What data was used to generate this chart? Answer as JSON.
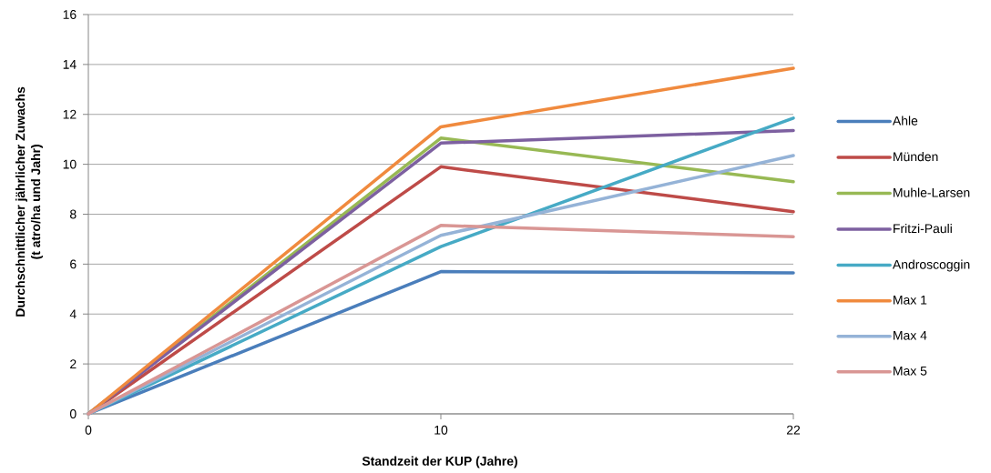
{
  "chart_data": {
    "type": "line",
    "xlabel": "Standzeit der KUP (Jahre)",
    "ylabel": "Durchschnittlicher jährlicher Zuwachs (t atro/ha und Jahr)",
    "categories": [
      "0",
      "10",
      "22"
    ],
    "ylim": [
      0,
      16
    ],
    "yticks": [
      0,
      2,
      4,
      6,
      8,
      10,
      12,
      14,
      16
    ],
    "grid": "y",
    "legend": "right",
    "series": [
      {
        "name": "Ahle",
        "color": "#4a7ebb",
        "values": [
          0,
          5.7,
          5.65
        ]
      },
      {
        "name": "Münden",
        "color": "#be4b48",
        "values": [
          0,
          9.9,
          8.1
        ]
      },
      {
        "name": "Muhle-Larsen",
        "color": "#98b954",
        "values": [
          0,
          11.05,
          9.3
        ]
      },
      {
        "name": "Fritzi-Pauli",
        "color": "#7d60a0",
        "values": [
          0,
          10.85,
          11.35
        ]
      },
      {
        "name": "Androscoggin",
        "color": "#46aac5",
        "values": [
          0,
          6.7,
          11.85
        ]
      },
      {
        "name": "Max 1",
        "color": "#f08a3e",
        "values": [
          0,
          11.5,
          13.85
        ]
      },
      {
        "name": "Max 4",
        "color": "#95b3d7",
        "values": [
          0,
          7.15,
          10.35
        ]
      },
      {
        "name": "Max 5",
        "color": "#d99694",
        "values": [
          0,
          7.55,
          7.1
        ]
      }
    ]
  }
}
